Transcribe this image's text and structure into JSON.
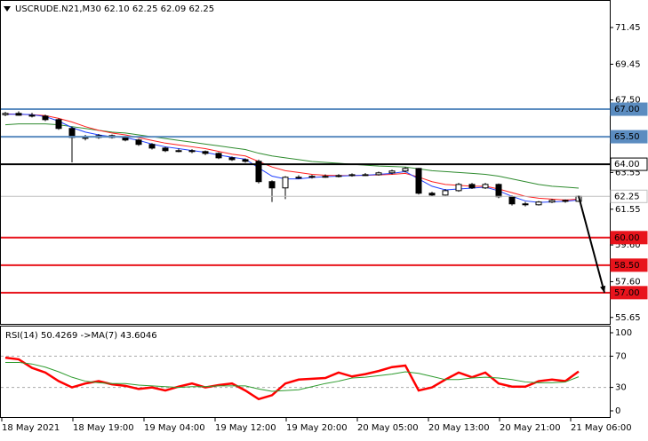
{
  "chart_data": [
    {
      "type": "candlestick",
      "title": "USCRUDE.N21,M30  62.10 62.25 62.09 62.25",
      "ylim": [
        55.3,
        72.95
      ],
      "yticks": [
        71.45,
        69.45,
        {
          "value": 67.5,
          "label": "67.50"
        },
        {
          "value": 65.5,
          "label": "65.50"
        },
        63.55,
        61.55,
        {
          "value": 59.6,
          "label": "59.60"
        },
        {
          "value": 57.6,
          "label": "57.60"
        },
        55.65
      ],
      "x_labels": [
        "18 May 2021",
        "18 May 19:00",
        "19 May 04:00",
        "19 May 12:00",
        "19 May 20:00",
        "20 May 05:00",
        "20 May 13:00",
        "20 May 21:00",
        "21 May 06:00"
      ],
      "open": [
        66.7,
        66.77,
        66.67,
        66.62,
        66.43,
        65.95,
        65.46,
        65.46,
        65.56,
        65.46,
        65.32,
        65.08,
        64.88,
        64.74,
        64.74,
        64.69,
        64.59,
        64.35,
        64.25,
        64.16,
        63.05,
        62.71,
        63.29,
        63.29,
        63.34,
        63.34,
        63.38,
        63.43,
        63.43,
        63.53,
        63.63,
        63.77,
        62.42,
        62.32,
        62.56,
        62.9,
        62.71,
        62.9,
        62.23,
        61.84,
        61.79,
        61.94,
        62.03,
        61.98
      ],
      "high": [
        66.85,
        66.88,
        66.8,
        66.7,
        66.5,
        66.05,
        65.6,
        65.65,
        65.62,
        65.55,
        65.38,
        65.15,
        64.95,
        64.85,
        64.82,
        64.75,
        64.65,
        64.42,
        64.32,
        64.25,
        63.12,
        63.35,
        63.4,
        63.42,
        63.45,
        63.46,
        63.5,
        63.52,
        63.6,
        63.7,
        63.85,
        63.8,
        62.5,
        62.65,
        62.98,
        62.98,
        62.98,
        62.95,
        62.3,
        61.95,
        62.0,
        62.1,
        62.08,
        62.3
      ],
      "low": [
        66.62,
        66.65,
        66.55,
        66.35,
        65.88,
        64.1,
        65.3,
        65.38,
        65.4,
        65.25,
        65.0,
        64.8,
        64.66,
        64.65,
        64.6,
        64.5,
        64.28,
        64.18,
        64.08,
        62.95,
        61.94,
        62.1,
        63.2,
        63.22,
        63.26,
        63.28,
        63.32,
        63.36,
        63.38,
        63.45,
        63.55,
        62.35,
        62.25,
        62.28,
        62.5,
        62.65,
        62.65,
        62.15,
        61.75,
        61.7,
        61.75,
        61.88,
        61.9,
        61.95
      ],
      "close": [
        66.77,
        66.67,
        66.62,
        66.43,
        65.95,
        65.46,
        65.46,
        65.56,
        65.46,
        65.32,
        65.08,
        64.88,
        64.74,
        64.74,
        64.69,
        64.59,
        64.35,
        64.25,
        64.16,
        63.05,
        62.71,
        63.29,
        63.29,
        63.34,
        63.34,
        63.38,
        63.43,
        63.43,
        63.53,
        63.63,
        63.77,
        62.42,
        62.32,
        62.56,
        62.9,
        62.71,
        62.9,
        62.23,
        61.84,
        61.79,
        61.94,
        62.03,
        61.98,
        62.25
      ],
      "series": [
        {
          "color": "#2e8b2e",
          "values": [
            66.15,
            66.2,
            66.2,
            66.2,
            66.15,
            66.05,
            65.95,
            65.85,
            65.75,
            65.7,
            65.6,
            65.5,
            65.4,
            65.3,
            65.2,
            65.1,
            65.0,
            64.9,
            64.8,
            64.6,
            64.45,
            64.35,
            64.25,
            64.15,
            64.1,
            64.05,
            64.0,
            63.95,
            63.9,
            63.88,
            63.85,
            63.75,
            63.65,
            63.6,
            63.55,
            63.5,
            63.45,
            63.35,
            63.2,
            63.05,
            62.9,
            62.8,
            62.75,
            62.7
          ]
        },
        {
          "color": "#ff2020",
          "values": [
            66.75,
            66.72,
            66.7,
            66.65,
            66.5,
            66.3,
            66.05,
            65.85,
            65.7,
            65.6,
            65.45,
            65.3,
            65.15,
            65.05,
            64.95,
            64.85,
            64.7,
            64.55,
            64.45,
            64.15,
            63.85,
            63.65,
            63.55,
            63.45,
            63.4,
            63.38,
            63.38,
            63.4,
            63.42,
            63.45,
            63.5,
            63.3,
            63.05,
            62.9,
            62.85,
            62.8,
            62.8,
            62.65,
            62.45,
            62.25,
            62.15,
            62.1,
            62.05,
            62.1
          ]
        },
        {
          "color": "#2040ff",
          "values": [
            66.72,
            66.73,
            66.7,
            66.6,
            66.35,
            66.0,
            65.75,
            65.6,
            65.5,
            65.45,
            65.3,
            65.1,
            64.95,
            64.85,
            64.75,
            64.65,
            64.5,
            64.38,
            64.28,
            63.8,
            63.35,
            63.2,
            63.2,
            63.28,
            63.32,
            63.35,
            63.38,
            63.4,
            63.45,
            63.5,
            63.6,
            63.2,
            62.8,
            62.6,
            62.65,
            62.7,
            62.75,
            62.55,
            62.25,
            62.0,
            61.92,
            61.95,
            61.98,
            62.05
          ]
        }
      ],
      "levels": [
        {
          "value": 67.0,
          "label": "67.00",
          "color": "#5b8cc0",
          "text_color": "#ffffff"
        },
        {
          "value": 65.5,
          "label": "65.50",
          "color": "#5b8cc0",
          "text_color": "#ffffff"
        },
        {
          "value": 64.0,
          "label": "64.00",
          "color": "#000000",
          "text_color": "#000000"
        },
        {
          "value": 62.25,
          "label": "62.25",
          "color": "#c0c0c0",
          "text_color": "#000000"
        },
        {
          "value": 60.0,
          "label": "60.00",
          "color": "#e8141c",
          "text_color": "#ffffff"
        },
        {
          "value": 58.5,
          "label": "58.50",
          "color": "#e8141c",
          "text_color": "#ffffff"
        },
        {
          "value": 57.0,
          "label": "57.00",
          "color": "#e8141c",
          "text_color": "#ffffff"
        }
      ]
    },
    {
      "type": "line",
      "title": "RSI(14) 50.4269  ->MA(7) 43.6046",
      "ylim": [
        0,
        100
      ],
      "yticks": [
        100,
        70,
        30,
        0
      ],
      "levels": [
        70,
        30
      ],
      "series": [
        {
          "color": "#ff0000",
          "values": [
            68,
            66,
            55,
            49,
            38,
            30,
            35,
            38,
            34,
            32,
            28,
            30,
            26,
            31,
            35,
            30,
            33,
            35,
            26,
            15,
            20,
            35,
            40,
            41,
            42,
            49,
            44,
            47,
            51,
            56,
            58,
            26,
            30,
            40,
            49,
            43,
            49,
            35,
            31,
            31,
            38,
            40,
            38,
            50.4269
          ]
        },
        {
          "color": "#2e9b2e",
          "values": [
            62,
            62,
            60,
            56,
            50,
            43,
            38,
            36,
            35,
            35,
            33,
            32,
            31,
            30,
            31,
            31,
            32,
            32,
            32,
            28,
            25,
            26,
            27,
            31,
            35,
            38,
            42,
            43,
            45,
            47,
            50,
            48,
            44,
            40,
            40,
            42,
            43,
            42,
            40,
            37,
            36,
            36,
            37,
            43.6046
          ]
        }
      ]
    }
  ]
}
